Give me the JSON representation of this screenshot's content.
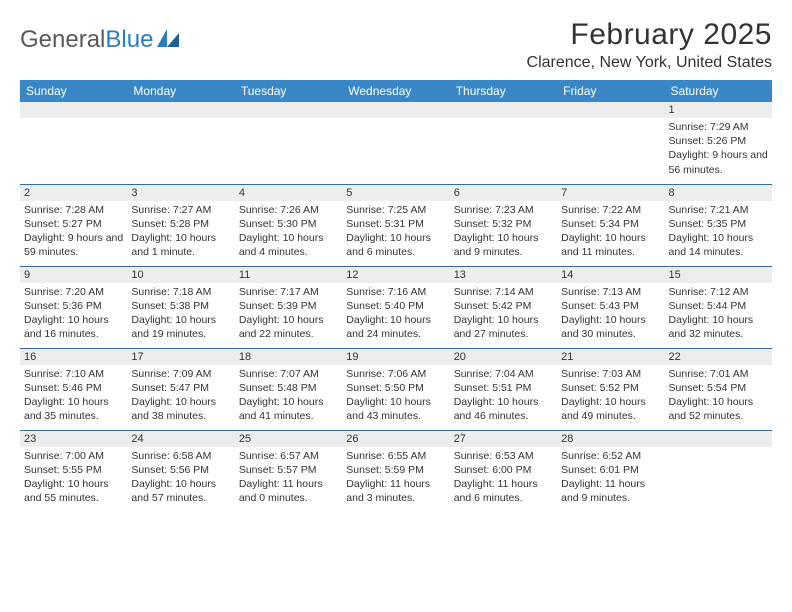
{
  "brand": {
    "part1": "General",
    "part2": "Blue"
  },
  "title": "February 2025",
  "location": "Clarence, New York, United States",
  "colors": {
    "header_bg": "#3a87c8",
    "header_text": "#ffffff",
    "daynum_bg": "#ededed",
    "row_border": "#3a6a9a",
    "text": "#333333",
    "logo_gray": "#58595b",
    "logo_blue": "#2b7bbf"
  },
  "day_headers": [
    "Sunday",
    "Monday",
    "Tuesday",
    "Wednesday",
    "Thursday",
    "Friday",
    "Saturday"
  ],
  "weeks": [
    [
      {
        "n": "",
        "sunrise": "",
        "sunset": "",
        "daylight": ""
      },
      {
        "n": "",
        "sunrise": "",
        "sunset": "",
        "daylight": ""
      },
      {
        "n": "",
        "sunrise": "",
        "sunset": "",
        "daylight": ""
      },
      {
        "n": "",
        "sunrise": "",
        "sunset": "",
        "daylight": ""
      },
      {
        "n": "",
        "sunrise": "",
        "sunset": "",
        "daylight": ""
      },
      {
        "n": "",
        "sunrise": "",
        "sunset": "",
        "daylight": ""
      },
      {
        "n": "1",
        "sunrise": "Sunrise: 7:29 AM",
        "sunset": "Sunset: 5:26 PM",
        "daylight": "Daylight: 9 hours and 56 minutes."
      }
    ],
    [
      {
        "n": "2",
        "sunrise": "Sunrise: 7:28 AM",
        "sunset": "Sunset: 5:27 PM",
        "daylight": "Daylight: 9 hours and 59 minutes."
      },
      {
        "n": "3",
        "sunrise": "Sunrise: 7:27 AM",
        "sunset": "Sunset: 5:28 PM",
        "daylight": "Daylight: 10 hours and 1 minute."
      },
      {
        "n": "4",
        "sunrise": "Sunrise: 7:26 AM",
        "sunset": "Sunset: 5:30 PM",
        "daylight": "Daylight: 10 hours and 4 minutes."
      },
      {
        "n": "5",
        "sunrise": "Sunrise: 7:25 AM",
        "sunset": "Sunset: 5:31 PM",
        "daylight": "Daylight: 10 hours and 6 minutes."
      },
      {
        "n": "6",
        "sunrise": "Sunrise: 7:23 AM",
        "sunset": "Sunset: 5:32 PM",
        "daylight": "Daylight: 10 hours and 9 minutes."
      },
      {
        "n": "7",
        "sunrise": "Sunrise: 7:22 AM",
        "sunset": "Sunset: 5:34 PM",
        "daylight": "Daylight: 10 hours and 11 minutes."
      },
      {
        "n": "8",
        "sunrise": "Sunrise: 7:21 AM",
        "sunset": "Sunset: 5:35 PM",
        "daylight": "Daylight: 10 hours and 14 minutes."
      }
    ],
    [
      {
        "n": "9",
        "sunrise": "Sunrise: 7:20 AM",
        "sunset": "Sunset: 5:36 PM",
        "daylight": "Daylight: 10 hours and 16 minutes."
      },
      {
        "n": "10",
        "sunrise": "Sunrise: 7:18 AM",
        "sunset": "Sunset: 5:38 PM",
        "daylight": "Daylight: 10 hours and 19 minutes."
      },
      {
        "n": "11",
        "sunrise": "Sunrise: 7:17 AM",
        "sunset": "Sunset: 5:39 PM",
        "daylight": "Daylight: 10 hours and 22 minutes."
      },
      {
        "n": "12",
        "sunrise": "Sunrise: 7:16 AM",
        "sunset": "Sunset: 5:40 PM",
        "daylight": "Daylight: 10 hours and 24 minutes."
      },
      {
        "n": "13",
        "sunrise": "Sunrise: 7:14 AM",
        "sunset": "Sunset: 5:42 PM",
        "daylight": "Daylight: 10 hours and 27 minutes."
      },
      {
        "n": "14",
        "sunrise": "Sunrise: 7:13 AM",
        "sunset": "Sunset: 5:43 PM",
        "daylight": "Daylight: 10 hours and 30 minutes."
      },
      {
        "n": "15",
        "sunrise": "Sunrise: 7:12 AM",
        "sunset": "Sunset: 5:44 PM",
        "daylight": "Daylight: 10 hours and 32 minutes."
      }
    ],
    [
      {
        "n": "16",
        "sunrise": "Sunrise: 7:10 AM",
        "sunset": "Sunset: 5:46 PM",
        "daylight": "Daylight: 10 hours and 35 minutes."
      },
      {
        "n": "17",
        "sunrise": "Sunrise: 7:09 AM",
        "sunset": "Sunset: 5:47 PM",
        "daylight": "Daylight: 10 hours and 38 minutes."
      },
      {
        "n": "18",
        "sunrise": "Sunrise: 7:07 AM",
        "sunset": "Sunset: 5:48 PM",
        "daylight": "Daylight: 10 hours and 41 minutes."
      },
      {
        "n": "19",
        "sunrise": "Sunrise: 7:06 AM",
        "sunset": "Sunset: 5:50 PM",
        "daylight": "Daylight: 10 hours and 43 minutes."
      },
      {
        "n": "20",
        "sunrise": "Sunrise: 7:04 AM",
        "sunset": "Sunset: 5:51 PM",
        "daylight": "Daylight: 10 hours and 46 minutes."
      },
      {
        "n": "21",
        "sunrise": "Sunrise: 7:03 AM",
        "sunset": "Sunset: 5:52 PM",
        "daylight": "Daylight: 10 hours and 49 minutes."
      },
      {
        "n": "22",
        "sunrise": "Sunrise: 7:01 AM",
        "sunset": "Sunset: 5:54 PM",
        "daylight": "Daylight: 10 hours and 52 minutes."
      }
    ],
    [
      {
        "n": "23",
        "sunrise": "Sunrise: 7:00 AM",
        "sunset": "Sunset: 5:55 PM",
        "daylight": "Daylight: 10 hours and 55 minutes."
      },
      {
        "n": "24",
        "sunrise": "Sunrise: 6:58 AM",
        "sunset": "Sunset: 5:56 PM",
        "daylight": "Daylight: 10 hours and 57 minutes."
      },
      {
        "n": "25",
        "sunrise": "Sunrise: 6:57 AM",
        "sunset": "Sunset: 5:57 PM",
        "daylight": "Daylight: 11 hours and 0 minutes."
      },
      {
        "n": "26",
        "sunrise": "Sunrise: 6:55 AM",
        "sunset": "Sunset: 5:59 PM",
        "daylight": "Daylight: 11 hours and 3 minutes."
      },
      {
        "n": "27",
        "sunrise": "Sunrise: 6:53 AM",
        "sunset": "Sunset: 6:00 PM",
        "daylight": "Daylight: 11 hours and 6 minutes."
      },
      {
        "n": "28",
        "sunrise": "Sunrise: 6:52 AM",
        "sunset": "Sunset: 6:01 PM",
        "daylight": "Daylight: 11 hours and 9 minutes."
      },
      {
        "n": "",
        "sunrise": "",
        "sunset": "",
        "daylight": ""
      }
    ]
  ]
}
